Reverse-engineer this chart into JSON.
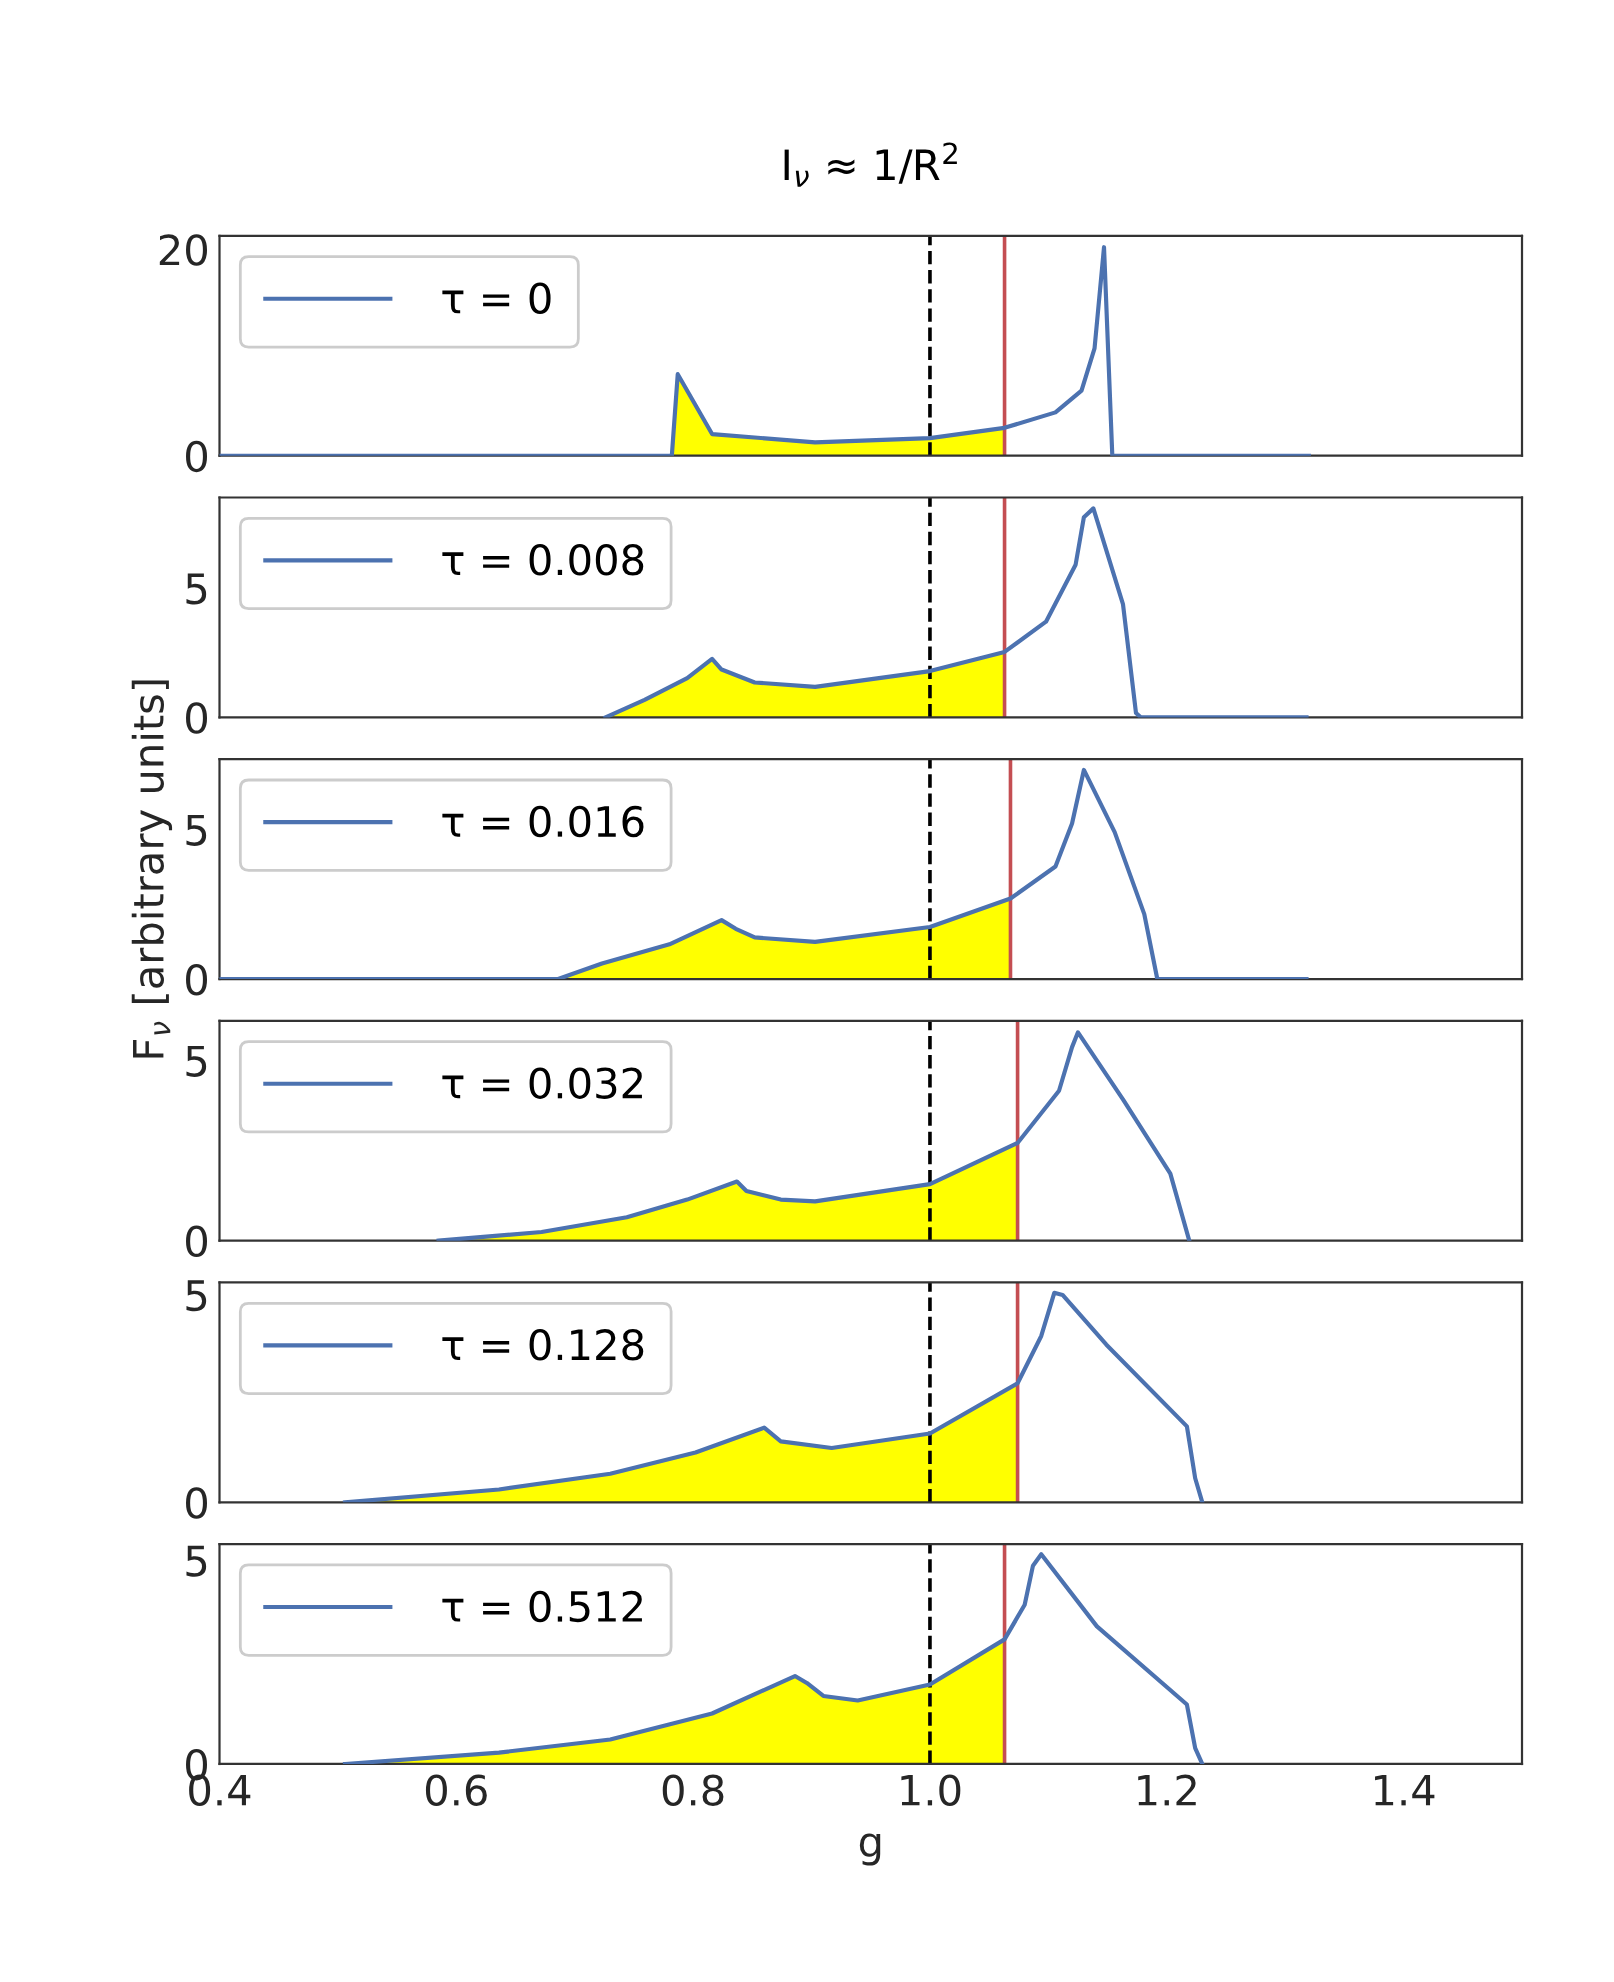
{
  "chart_data": [
    {
      "type": "line",
      "title": "I$_{ν}$ ≈ 1/R$^{2}$",
      "xlim": [
        0.4,
        1.5
      ],
      "xticks": [
        0.4,
        0.6,
        0.8,
        1.0,
        1.2,
        1.4
      ],
      "ylim": [
        0,
        21.3
      ],
      "yticks": [
        0,
        20
      ],
      "tick_labels": "y",
      "legend": "top left",
      "grid": false,
      "ref_lines": [
        {
          "axis": "x",
          "value": 1.0,
          "color": "#000000",
          "line_style": "dashed"
        },
        {
          "axis": "x",
          "value": 1.063,
          "color": "#c44e52",
          "line_style": "solid"
        }
      ],
      "series": [
        {
          "name": "τ = 0",
          "color": "#4c72b0",
          "x": [
            0.4,
            0.782,
            0.787,
            0.816,
            0.903,
            1.0,
            1.063,
            1.106,
            1.128,
            1.139,
            1.147,
            1.154,
            1.32
          ],
          "values": [
            0,
            0,
            7.9,
            2.1,
            1.3,
            1.7,
            2.7,
            4.2,
            6.3,
            10.4,
            20.2,
            0,
            0
          ]
        },
        {
          "type": "area",
          "color": "#ffff00",
          "x": [
            0.782,
            0.787,
            0.816,
            0.903,
            1.0,
            1.063
          ],
          "values": [
            0,
            7.9,
            2.1,
            1.3,
            1.7,
            2.7
          ]
        }
      ]
    },
    {
      "type": "line",
      "xlim": [
        0.4,
        1.5
      ],
      "xticks": [
        0.4,
        0.6,
        0.8,
        1.0,
        1.2,
        1.4
      ],
      "ylim": [
        0,
        8.5
      ],
      "yticks": [
        0,
        5
      ],
      "tick_labels": "y",
      "legend": "top left",
      "grid": false,
      "ref_lines": [
        {
          "axis": "x",
          "value": 1.0,
          "color": "#000000",
          "line_style": "dashed"
        },
        {
          "axis": "x",
          "value": 1.063,
          "color": "#c44e52",
          "line_style": "solid"
        }
      ],
      "series": [
        {
          "name": "τ = 0.008",
          "color": "#4c72b0",
          "x": [
            0.726,
            0.759,
            0.795,
            0.816,
            0.824,
            0.852,
            0.903,
            1.0,
            1.063,
            1.098,
            1.123,
            1.13,
            1.138,
            1.163,
            1.174,
            1.178,
            1.318
          ],
          "values": [
            0,
            0.68,
            1.52,
            2.26,
            1.85,
            1.35,
            1.18,
            1.79,
            2.53,
            3.7,
            5.9,
            7.74,
            8.08,
            4.38,
            0.17,
            0,
            0
          ]
        },
        {
          "type": "area",
          "color": "#ffff00",
          "x": [
            0.726,
            0.759,
            0.795,
            0.816,
            0.824,
            0.852,
            0.903,
            1.0,
            1.063
          ],
          "values": [
            0,
            0.68,
            1.52,
            2.26,
            1.85,
            1.35,
            1.18,
            1.79,
            2.53
          ]
        }
      ]
    },
    {
      "type": "line",
      "ylabel": "F$_{ν}$ [arbitrary units]",
      "xlim": [
        0.4,
        1.5
      ],
      "xticks": [
        0.4,
        0.6,
        0.8,
        1.0,
        1.2,
        1.4
      ],
      "ylim": [
        0,
        7.35
      ],
      "yticks": [
        0,
        5
      ],
      "tick_labels": "y",
      "legend": "top left",
      "grid": false,
      "ref_lines": [
        {
          "axis": "x",
          "value": 1.0,
          "color": "#000000",
          "line_style": "dashed"
        },
        {
          "axis": "x",
          "value": 1.068,
          "color": "#c44e52",
          "line_style": "solid"
        }
      ],
      "series": [
        {
          "name": "τ = 0.016",
          "color": "#4c72b0",
          "x": [
            0.4,
            0.686,
            0.723,
            0.78,
            0.824,
            0.836,
            0.852,
            0.903,
            1.0,
            1.068,
            1.106,
            1.12,
            1.13,
            1.156,
            1.181,
            1.192,
            1.318
          ],
          "values": [
            0,
            0,
            0.52,
            1.16,
            1.97,
            1.68,
            1.39,
            1.24,
            1.74,
            2.69,
            3.76,
            5.2,
            6.99,
            4.91,
            2.17,
            0,
            0
          ]
        },
        {
          "type": "area",
          "color": "#ffff00",
          "x": [
            0.686,
            0.723,
            0.78,
            0.824,
            0.836,
            0.852,
            0.903,
            1.0,
            1.068
          ],
          "values": [
            0,
            0.52,
            1.16,
            1.97,
            1.68,
            1.39,
            1.24,
            1.74,
            2.69
          ]
        }
      ]
    },
    {
      "type": "line",
      "xlim": [
        0.4,
        1.5
      ],
      "xticks": [
        0.4,
        0.6,
        0.8,
        1.0,
        1.2,
        1.4
      ],
      "ylim": [
        0,
        6.1
      ],
      "yticks": [
        0,
        5
      ],
      "tick_labels": "y",
      "legend": "top left",
      "grid": false,
      "ref_lines": [
        {
          "axis": "x",
          "value": 1.0,
          "color": "#000000",
          "line_style": "dashed"
        },
        {
          "axis": "x",
          "value": 1.074,
          "color": "#c44e52",
          "line_style": "solid"
        }
      ],
      "series": [
        {
          "name": "τ = 0.032",
          "color": "#4c72b0",
          "x": [
            0.585,
            0.672,
            0.744,
            0.795,
            0.837,
            0.845,
            0.874,
            0.903,
            1.0,
            1.074,
            1.109,
            1.12,
            1.125,
            1.163,
            1.203,
            1.219
          ],
          "values": [
            0,
            0.24,
            0.65,
            1.14,
            1.64,
            1.38,
            1.14,
            1.09,
            1.57,
            2.71,
            4.16,
            5.37,
            5.78,
            3.92,
            1.86,
            0
          ]
        },
        {
          "type": "area",
          "color": "#ffff00",
          "x": [
            0.585,
            0.672,
            0.744,
            0.795,
            0.837,
            0.845,
            0.874,
            0.903,
            1.0,
            1.074
          ],
          "values": [
            0,
            0.24,
            0.65,
            1.14,
            1.64,
            1.38,
            1.14,
            1.09,
            1.57,
            2.71
          ]
        }
      ]
    },
    {
      "type": "line",
      "xlim": [
        0.4,
        1.5
      ],
      "xticks": [
        0.4,
        0.6,
        0.8,
        1.0,
        1.2,
        1.4
      ],
      "ylim": [
        0,
        5.3
      ],
      "yticks": [
        0,
        5
      ],
      "tick_labels": "y",
      "legend": "top left",
      "grid": false,
      "ref_lines": [
        {
          "axis": "x",
          "value": 1.0,
          "color": "#000000",
          "line_style": "dashed"
        },
        {
          "axis": "x",
          "value": 1.074,
          "color": "#c44e52",
          "line_style": "solid"
        }
      ],
      "series": [
        {
          "name": "τ = 0.128",
          "color": "#4c72b0",
          "x": [
            0.506,
            0.636,
            0.73,
            0.802,
            0.86,
            0.874,
            0.917,
            1.0,
            1.074,
            1.094,
            1.105,
            1.112,
            1.149,
            1.217,
            1.224,
            1.23
          ],
          "values": [
            0,
            0.31,
            0.69,
            1.2,
            1.8,
            1.47,
            1.31,
            1.66,
            2.87,
            4.01,
            5.05,
            5.0,
            3.8,
            1.83,
            0.58,
            0
          ]
        },
        {
          "type": "area",
          "color": "#ffff00",
          "x": [
            0.506,
            0.636,
            0.73,
            0.802,
            0.86,
            0.874,
            0.917,
            1.0,
            1.074
          ],
          "values": [
            0,
            0.31,
            0.69,
            1.2,
            1.8,
            1.47,
            1.31,
            1.66,
            2.87
          ]
        }
      ]
    },
    {
      "type": "line",
      "xlabel": "g",
      "xlim": [
        0.4,
        1.5
      ],
      "xticks": [
        0.4,
        0.6,
        0.8,
        {
          "value": 1.0,
          "label": "1.0"
        },
        1.2,
        1.4
      ],
      "ylim": [
        0,
        5.4
      ],
      "yticks": [
        0,
        5
      ],
      "legend": "top left",
      "grid": false,
      "ref_lines": [
        {
          "axis": "x",
          "value": 1.0,
          "color": "#000000",
          "line_style": "dashed"
        },
        {
          "axis": "x",
          "value": 1.063,
          "color": "#c44e52",
          "line_style": "solid"
        }
      ],
      "series": [
        {
          "name": "τ = 0.512",
          "color": "#4c72b0",
          "x": [
            0.506,
            0.636,
            0.73,
            0.816,
            0.886,
            0.896,
            0.91,
            0.939,
            1.0,
            1.063,
            1.08,
            1.087,
            1.094,
            1.141,
            1.217,
            1.224,
            1.23
          ],
          "values": [
            0,
            0.28,
            0.6,
            1.24,
            2.16,
            1.99,
            1.67,
            1.56,
            1.95,
            3.06,
            3.91,
            4.87,
            5.15,
            3.38,
            1.46,
            0.39,
            0
          ]
        },
        {
          "type": "area",
          "color": "#ffff00",
          "x": [
            0.506,
            0.636,
            0.73,
            0.816,
            0.886,
            0.896,
            0.91,
            0.939,
            1.0,
            1.063
          ],
          "values": [
            0,
            0.28,
            0.6,
            1.24,
            2.16,
            1.99,
            1.67,
            1.56,
            1.95,
            3.06
          ]
        }
      ]
    }
  ]
}
